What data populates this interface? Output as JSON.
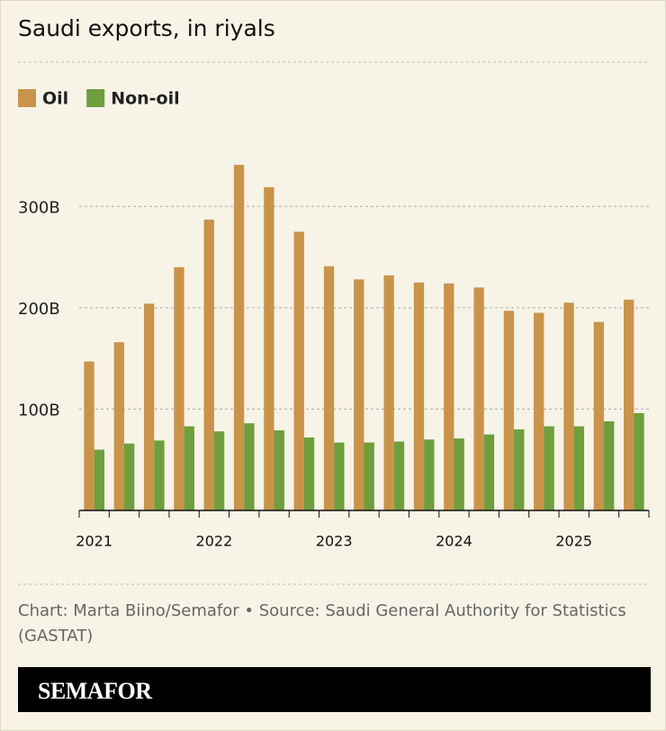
{
  "chart_data": {
    "type": "bar",
    "title": "Saudi exports, in riyals",
    "categories": [
      "2021",
      null,
      null,
      null,
      "2022",
      null,
      null,
      null,
      "2023",
      null,
      null,
      null,
      "2024",
      null,
      null,
      null,
      "2025",
      null,
      null
    ],
    "series": [
      {
        "name": "Oil",
        "color": "#c9944a",
        "values": [
          147,
          166,
          204,
          240,
          287,
          341,
          319,
          275,
          241,
          228,
          232,
          225,
          224,
          220,
          197,
          195,
          205,
          186,
          208
        ]
      },
      {
        "name": "Non-oil",
        "color": "#6e9e3e",
        "values": [
          60,
          66,
          69,
          83,
          78,
          86,
          79,
          72,
          67,
          67,
          68,
          70,
          71,
          75,
          80,
          83,
          83,
          88,
          96
        ]
      }
    ],
    "ylim": [
      0,
      350
    ],
    "yticks": [
      {
        "value": 100,
        "label": "100B"
      },
      {
        "value": 200,
        "label": "200B"
      },
      {
        "value": 300,
        "label": "300B"
      }
    ],
    "grid": true,
    "legend": "top-left"
  },
  "source": "Chart: Marta Biino/Semafor • Source: Saudi General Authority for Statistics (GASTAT)",
  "logo": "SEMAFOR"
}
